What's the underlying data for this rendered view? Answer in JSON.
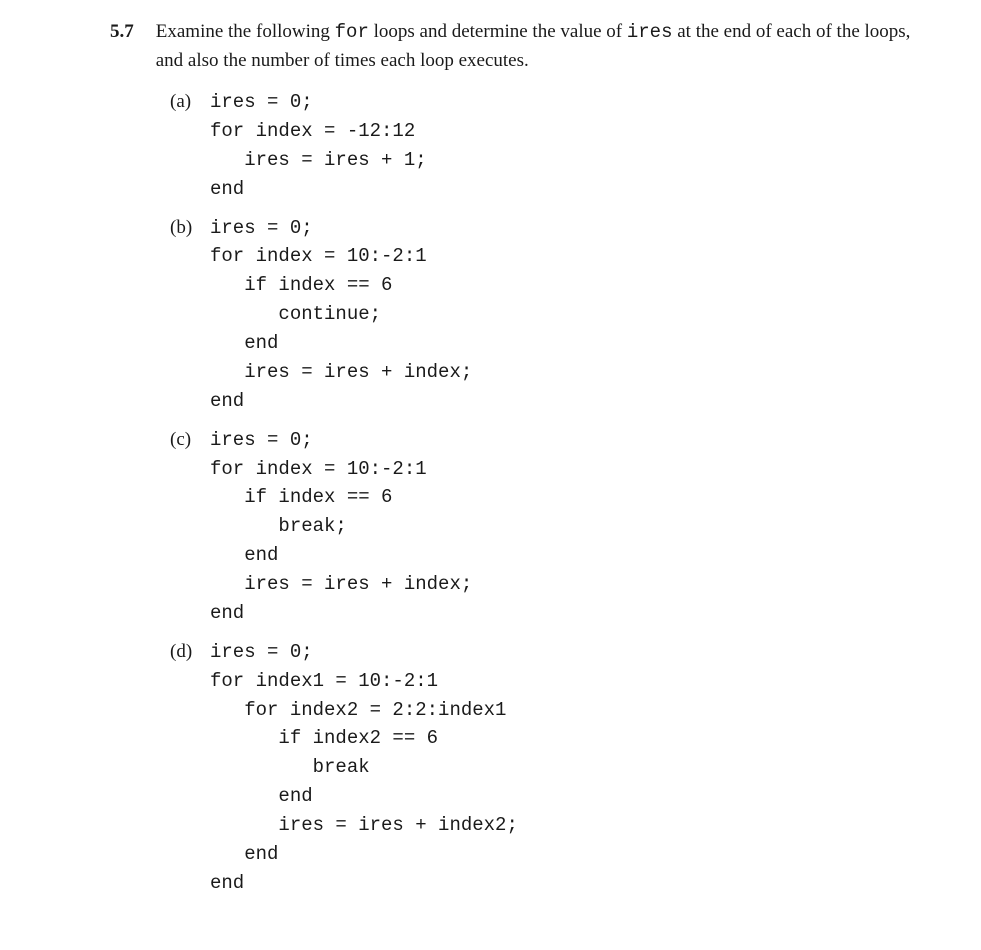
{
  "problem": {
    "number": "5.7",
    "text_parts": [
      "Examine the following ",
      "for",
      " loops and determine the value of ",
      "ires",
      " at the end of each of the loops, and also the number of times each loop executes."
    ]
  },
  "subproblems": [
    {
      "label": "(a)",
      "code": "ires = 0;\nfor index = -12:12\n   ires = ires + 1;\nend"
    },
    {
      "label": "(b)",
      "code": "ires = 0;\nfor index = 10:-2:1\n   if index == 6\n      continue;\n   end\n   ires = ires + index;\nend"
    },
    {
      "label": "(c)",
      "code": "ires = 0;\nfor index = 10:-2:1\n   if index == 6\n      break;\n   end\n   ires = ires + index;\nend"
    },
    {
      "label": "(d)",
      "code": "ires = 0;\nfor index1 = 10:-2:1\n   for index2 = 2:2:index1\n      if index2 == 6\n         break\n      end\n      ires = ires + index2;\n   end\nend"
    }
  ]
}
